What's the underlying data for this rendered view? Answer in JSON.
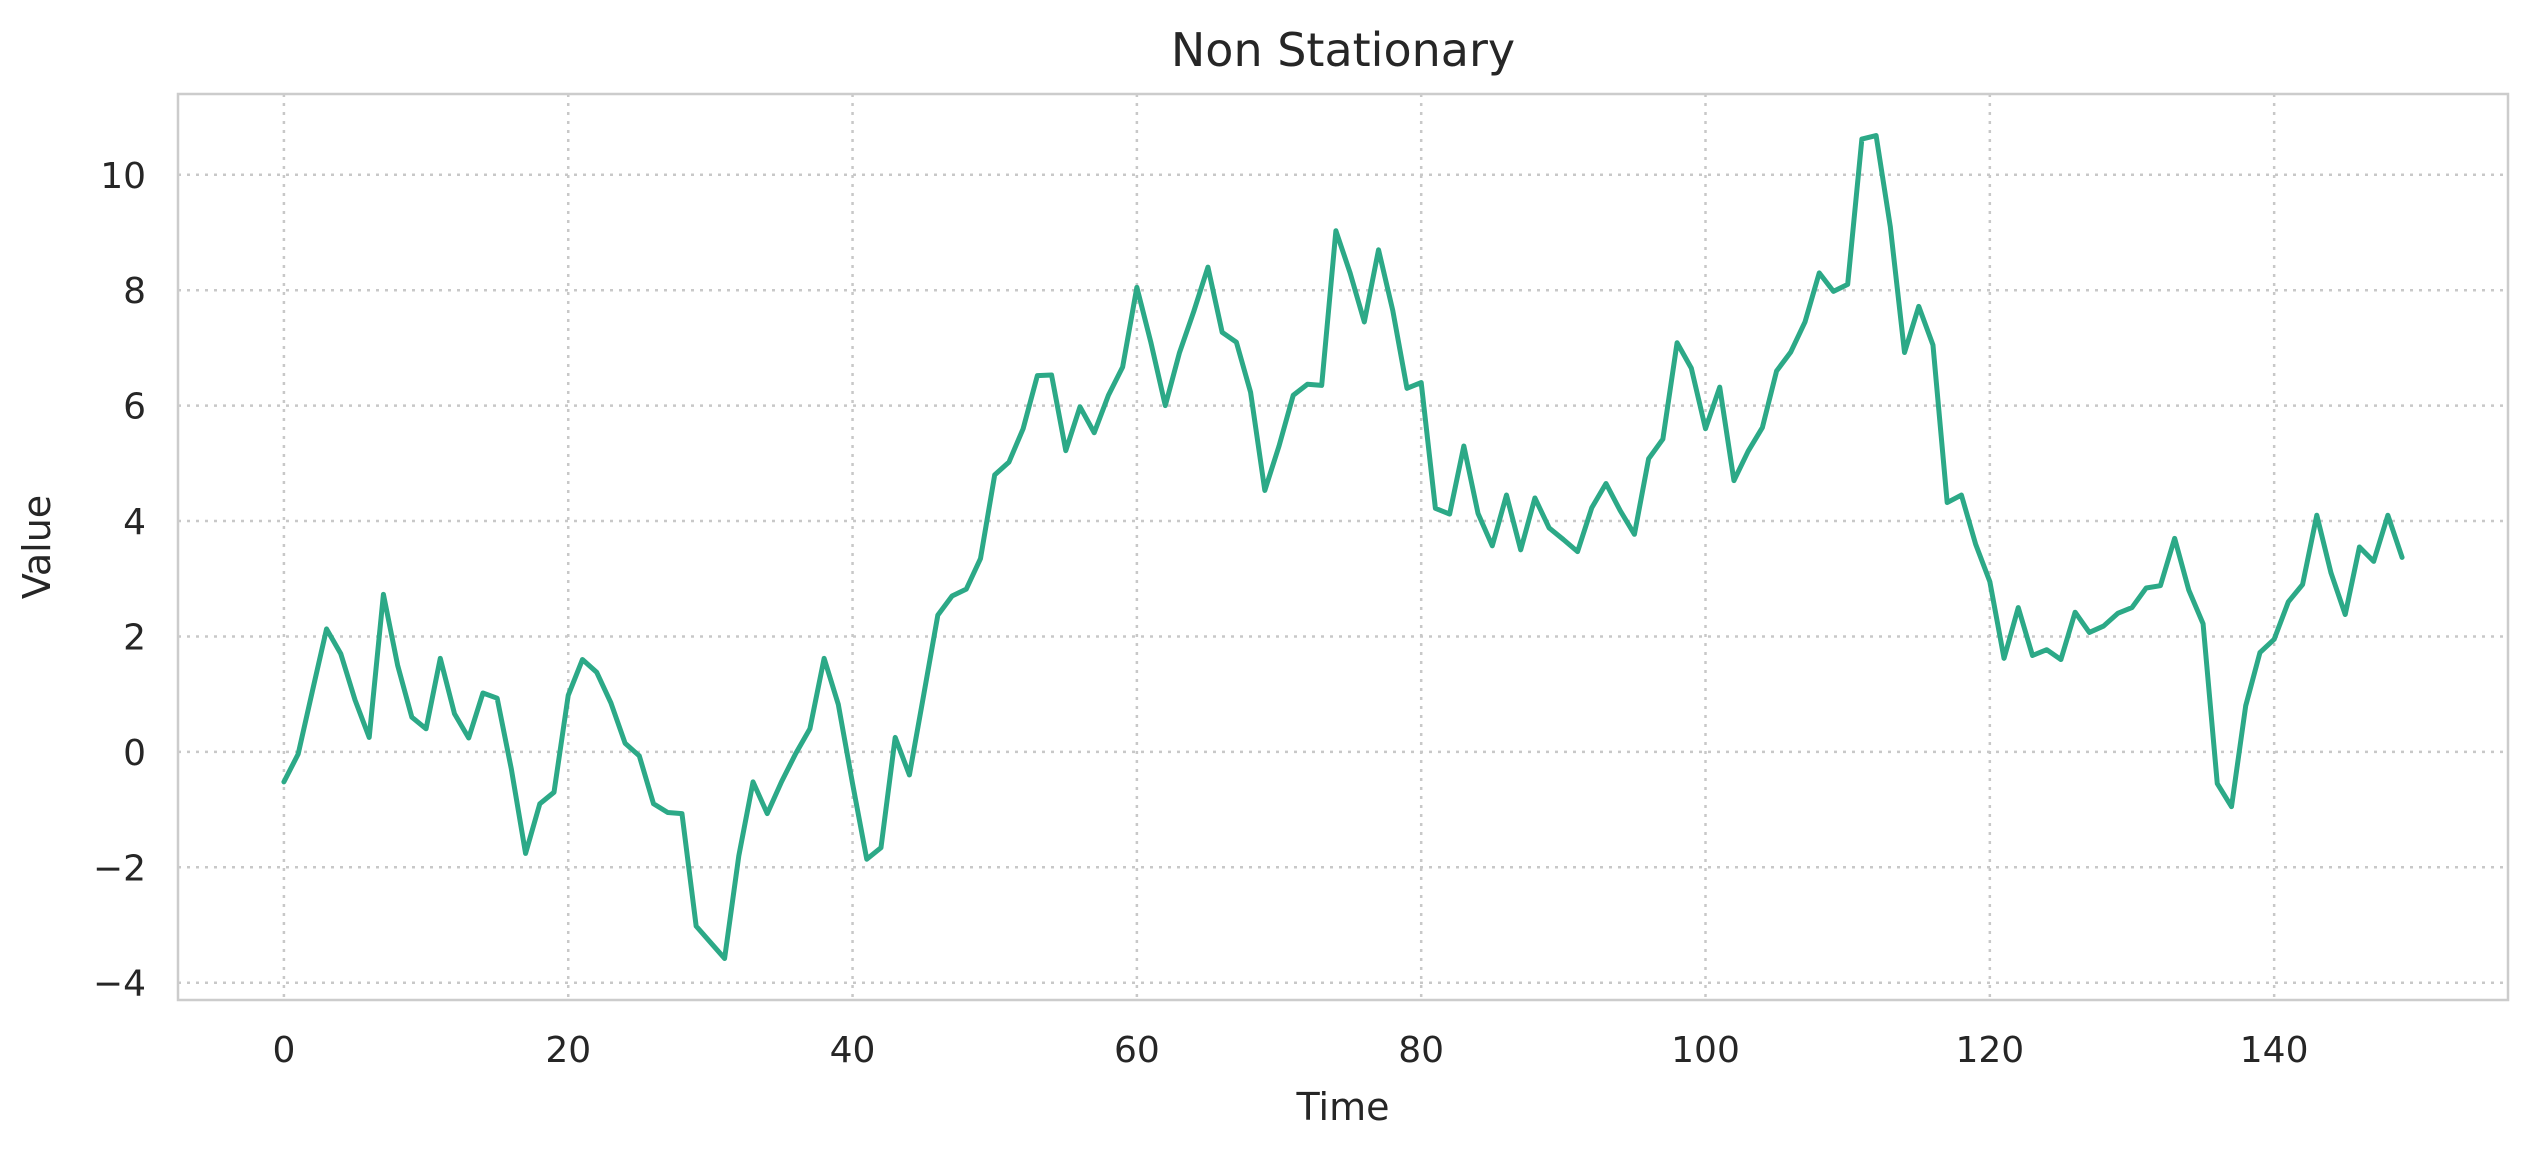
{
  "chart_data": {
    "type": "line",
    "title": "Non Stationary",
    "xlabel": "Time",
    "ylabel": "Value",
    "xlim": [
      -7.45,
      156.45
    ],
    "ylim": [
      -4.3,
      11.4
    ],
    "xticks": [
      0,
      20,
      40,
      60,
      80,
      100,
      120,
      140
    ],
    "yticks": [
      -4,
      -2,
      0,
      2,
      4,
      6,
      8,
      10
    ],
    "ytick_labels": [
      "−4",
      "−2",
      "0",
      "2",
      "4",
      "6",
      "8",
      "10"
    ],
    "grid": true,
    "legend": false,
    "series": [
      {
        "color": "#2ca987",
        "x": [
          0,
          1,
          2,
          3,
          4,
          5,
          6,
          7,
          8,
          9,
          10,
          11,
          12,
          13,
          14,
          15,
          16,
          17,
          18,
          19,
          20,
          21,
          22,
          23,
          24,
          25,
          26,
          27,
          28,
          29,
          30,
          31,
          32,
          33,
          34,
          35,
          36,
          37,
          38,
          39,
          40,
          41,
          42,
          43,
          44,
          45,
          46,
          47,
          48,
          49,
          50,
          51,
          52,
          53,
          54,
          55,
          56,
          57,
          58,
          59,
          60,
          61,
          62,
          63,
          64,
          65,
          66,
          67,
          68,
          69,
          70,
          71,
          72,
          73,
          74,
          75,
          76,
          77,
          78,
          79,
          80,
          81,
          82,
          83,
          84,
          85,
          86,
          87,
          88,
          89,
          90,
          91,
          92,
          93,
          94,
          95,
          96,
          97,
          98,
          99,
          100,
          101,
          102,
          103,
          104,
          105,
          106,
          107,
          108,
          109,
          110,
          111,
          112,
          113,
          114,
          115,
          116,
          117,
          118,
          119,
          120,
          121,
          122,
          123,
          124,
          125,
          126,
          127,
          128,
          129,
          130,
          131,
          132,
          133,
          134,
          135,
          136,
          137,
          138,
          139,
          140,
          141,
          142,
          143,
          144,
          145,
          146,
          147,
          148,
          149
        ],
        "values": [
          -0.52,
          -0.04,
          1.05,
          2.13,
          1.7,
          0.9,
          0.25,
          2.73,
          1.5,
          0.6,
          0.4,
          1.62,
          0.66,
          0.24,
          1.02,
          0.93,
          -0.3,
          -1.76,
          -0.9,
          -0.7,
          0.98,
          1.6,
          1.38,
          0.85,
          0.15,
          -0.07,
          -0.9,
          -1.05,
          -1.07,
          -3.02,
          -3.3,
          -3.58,
          -1.8,
          -0.52,
          -1.07,
          -0.52,
          -0.03,
          0.4,
          1.62,
          0.82,
          -0.55,
          -1.86,
          -1.66,
          0.25,
          -0.4,
          0.98,
          2.37,
          2.7,
          2.82,
          3.35,
          4.8,
          5.02,
          5.6,
          6.52,
          6.53,
          5.22,
          5.98,
          5.53,
          6.18,
          6.67,
          8.05,
          7.08,
          6.0,
          6.92,
          7.63,
          8.4,
          7.27,
          7.1,
          6.23,
          4.53,
          5.3,
          6.18,
          6.37,
          6.35,
          9.03,
          8.3,
          7.45,
          8.7,
          7.65,
          6.3,
          6.4,
          4.22,
          4.12,
          5.3,
          4.13,
          3.57,
          4.45,
          3.5,
          4.4,
          3.88,
          3.68,
          3.47,
          4.23,
          4.65,
          4.18,
          3.77,
          5.08,
          5.42,
          7.09,
          6.65,
          5.6,
          6.32,
          4.7,
          5.21,
          5.62,
          6.6,
          6.93,
          7.45,
          8.3,
          7.98,
          8.1,
          10.62,
          10.68,
          9.1,
          6.92,
          7.72,
          7.05,
          4.32,
          4.45,
          3.6,
          2.95,
          1.62,
          2.5,
          1.67,
          1.77,
          1.6,
          2.42,
          2.07,
          2.18,
          2.4,
          2.5,
          2.84,
          2.88,
          3.7,
          2.8,
          2.22,
          -0.55,
          -0.95,
          0.8,
          1.72,
          1.95,
          2.6,
          2.9,
          4.1,
          3.1,
          2.38,
          3.55,
          3.3,
          4.1,
          3.37
        ]
      }
    ]
  }
}
